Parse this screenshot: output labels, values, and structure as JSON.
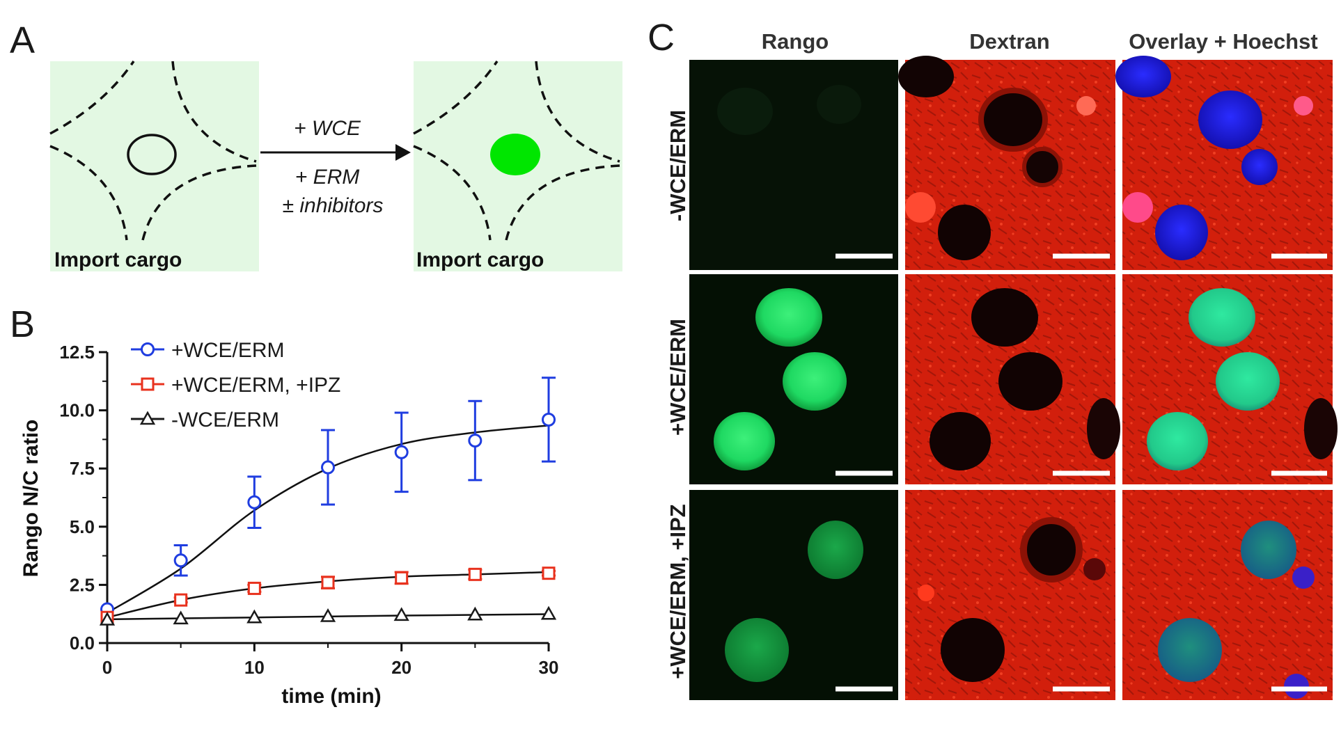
{
  "panel_labels": {
    "a": "A",
    "b": "B",
    "c": "C"
  },
  "panel_a": {
    "left_label": "Import cargo",
    "right_label": "Import cargo",
    "arrow_top": "+ WCE",
    "arrow_bottom_1": "+ ERM",
    "arrow_bottom_2": "± inhibitors",
    "colors": {
      "background": "#e3f8e3",
      "nucleus_fill": "#00e600"
    }
  },
  "chart_data": {
    "type": "line",
    "xlabel": "time (min)",
    "ylabel": "Rango N/C ratio",
    "xlim": [
      0,
      30
    ],
    "ylim": [
      0,
      12.5
    ],
    "x_ticks": [
      "0",
      "10",
      "20",
      "30"
    ],
    "y_ticks": [
      "0.0",
      "2.5",
      "5.0",
      "7.5",
      "10.0",
      "12.5"
    ],
    "x": [
      0,
      5,
      10,
      15,
      20,
      25,
      30
    ],
    "series": [
      {
        "name": "+WCE/ERM",
        "marker": "circle",
        "color": "#1f3de0",
        "values": [
          1.45,
          3.55,
          6.05,
          7.55,
          8.2,
          8.7,
          9.6
        ],
        "errors": [
          0.0,
          0.65,
          1.1,
          1.6,
          1.7,
          1.7,
          1.8
        ],
        "fit": [
          1.3,
          3.2,
          5.7,
          7.5,
          8.55,
          9.05,
          9.35
        ]
      },
      {
        "name": "+WCE/ERM, +IPZ",
        "marker": "square",
        "color": "#e8321e",
        "values": [
          1.1,
          1.85,
          2.35,
          2.6,
          2.8,
          2.95,
          3.0
        ],
        "errors": [
          0.0,
          0.1,
          0.15,
          0.25,
          0.25,
          0.2,
          0.1
        ],
        "fit": [
          1.1,
          1.85,
          2.35,
          2.65,
          2.85,
          2.95,
          3.05
        ]
      },
      {
        "name": "-WCE/ERM",
        "marker": "triangle",
        "color": "#1a1a1a",
        "values": [
          1.0,
          1.05,
          1.1,
          1.15,
          1.2,
          1.22,
          1.25
        ],
        "errors": [
          0,
          0,
          0,
          0,
          0,
          0,
          0
        ],
        "fit": [
          1.02,
          1.06,
          1.1,
          1.14,
          1.18,
          1.21,
          1.24
        ]
      }
    ]
  },
  "panel_c": {
    "columns": [
      "Rango",
      "Dextran",
      "Overlay + Hoechst"
    ],
    "rows": [
      "-WCE/ERM",
      "+WCE/ERM",
      "+WCE/ERM, +IPZ"
    ]
  }
}
